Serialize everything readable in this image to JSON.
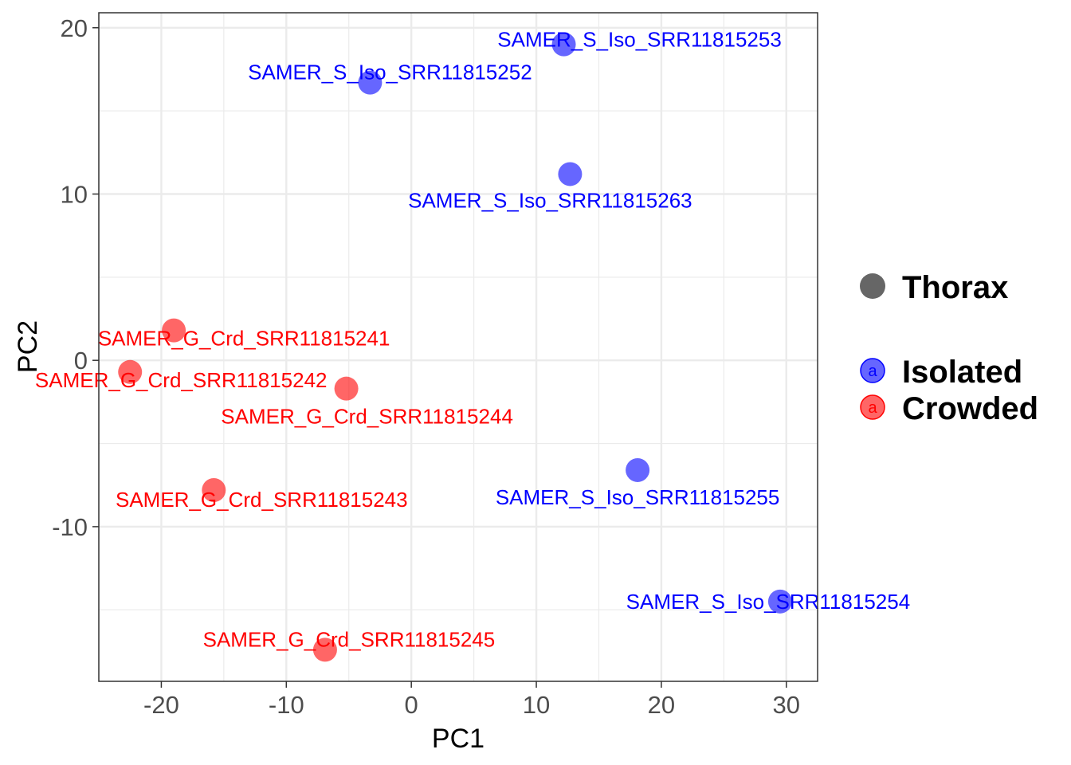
{
  "chart_data": {
    "type": "scatter",
    "xlabel": "PC1",
    "ylabel": "PC2",
    "xlim": [
      -25,
      32.5
    ],
    "ylim": [
      -19.3,
      20.9
    ],
    "x_ticks": [
      -20,
      -10,
      0,
      10,
      20,
      30
    ],
    "y_ticks": [
      -10,
      0,
      10,
      20
    ],
    "x_tick_labels": [
      "-20",
      "-10",
      "0",
      "10",
      "20",
      "30"
    ],
    "y_tick_labels": [
      "-10",
      "0",
      "10",
      "20"
    ],
    "grid": true,
    "series": [
      {
        "name": "Isolated",
        "color": "#0000ff",
        "points": [
          {
            "label": "SAMER_S_Iso_SRR11815253",
            "x": 12.2,
            "y": 19.0
          },
          {
            "label": "SAMER_S_Iso_SRR11815252",
            "x": -3.3,
            "y": 16.7
          },
          {
            "label": "SAMER_S_Iso_SRR11815263",
            "x": 12.7,
            "y": 11.2
          },
          {
            "label": "SAMER_S_Iso_SRR11815255",
            "x": 18.1,
            "y": -6.6
          },
          {
            "label": "SAMER_S_Iso_SRR11815254",
            "x": 29.5,
            "y": -14.5
          }
        ]
      },
      {
        "name": "Crowded",
        "color": "#ff0000",
        "points": [
          {
            "label": "SAMER_G_Crd_SRR11815241",
            "x": -19.0,
            "y": 1.8
          },
          {
            "label": "SAMER_G_Crd_SRR11815242",
            "x": -22.5,
            "y": -0.7
          },
          {
            "label": "SAMER_G_Crd_SRR11815244",
            "x": -5.2,
            "y": -1.7
          },
          {
            "label": "SAMER_G_Crd_SRR11815243",
            "x": -15.8,
            "y": -7.8
          },
          {
            "label": "SAMER_G_Crd_SRR11815245",
            "x": -6.9,
            "y": -17.4
          }
        ]
      }
    ],
    "legend": {
      "position": "right",
      "shape_entry": "Thorax",
      "shape_color": "#666666",
      "key_glyph": "a",
      "entries": [
        {
          "name": "Isolated",
          "color": "#0000ff"
        },
        {
          "name": "Crowded",
          "color": "#ff0000"
        }
      ]
    }
  }
}
